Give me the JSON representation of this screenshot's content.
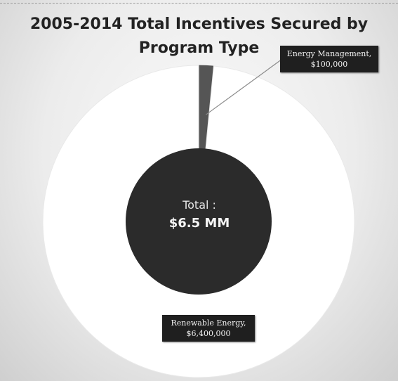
{
  "chart_data": {
    "type": "pie",
    "title": "2005-2014 Total Incentives Secured by Program Type",
    "categories": [
      "Renewable Energy",
      "Energy Management"
    ],
    "values": [
      6400000,
      100000
    ],
    "labels": [
      "Renewable Energy,\n$6,400,000",
      "Energy Management,\n$100,000"
    ],
    "center_label": "Total :",
    "center_value": "$6.5 MM",
    "colors": {
      "renewable_energy": "#ffffff",
      "energy_management": "#555555",
      "center_disc": "#2b2b2b",
      "callout_background": "#1f1f1f"
    },
    "legend": "none"
  }
}
